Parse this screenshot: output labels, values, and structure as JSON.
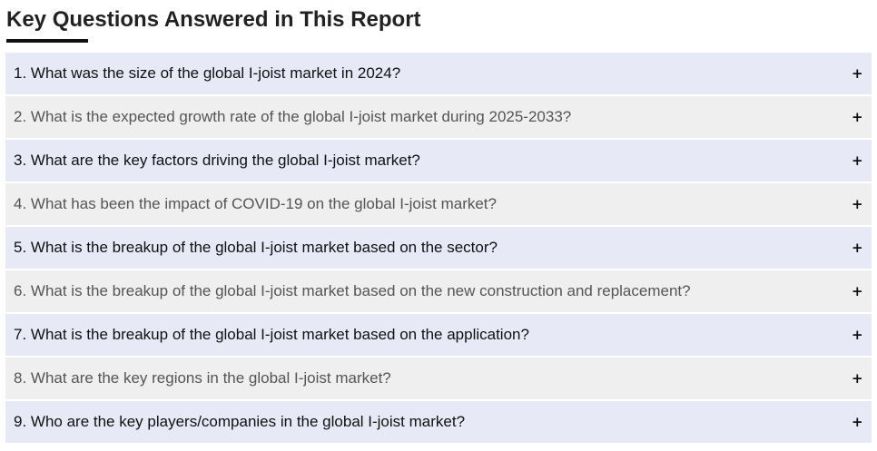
{
  "section": {
    "title": "Key Questions Answered in This Report"
  },
  "faq": {
    "expand_symbol": "+",
    "items": [
      {
        "question": "1. What was the size of the global I-joist market in 2024?"
      },
      {
        "question": "2. What is the expected growth rate of the global I-joist market during 2025-2033?"
      },
      {
        "question": "3. What are the key factors driving the global I-joist market?"
      },
      {
        "question": "4. What has been the impact of COVID-19 on the global I-joist market?"
      },
      {
        "question": "5. What is the breakup of the global I-joist market based on the sector?"
      },
      {
        "question": "6. What is the breakup of the global I-joist market based on the new construction and replacement?"
      },
      {
        "question": "7. What is the breakup of the global I-joist market based on the application?"
      },
      {
        "question": "8. What are the key regions in the global I-joist market?"
      },
      {
        "question": "9. Who are the key players/companies in the global I-joist market?"
      }
    ]
  },
  "colors": {
    "odd_row_bg": "#e7e9f6",
    "even_row_bg": "#efefef",
    "title_text": "#222222",
    "underline": "#111111"
  }
}
